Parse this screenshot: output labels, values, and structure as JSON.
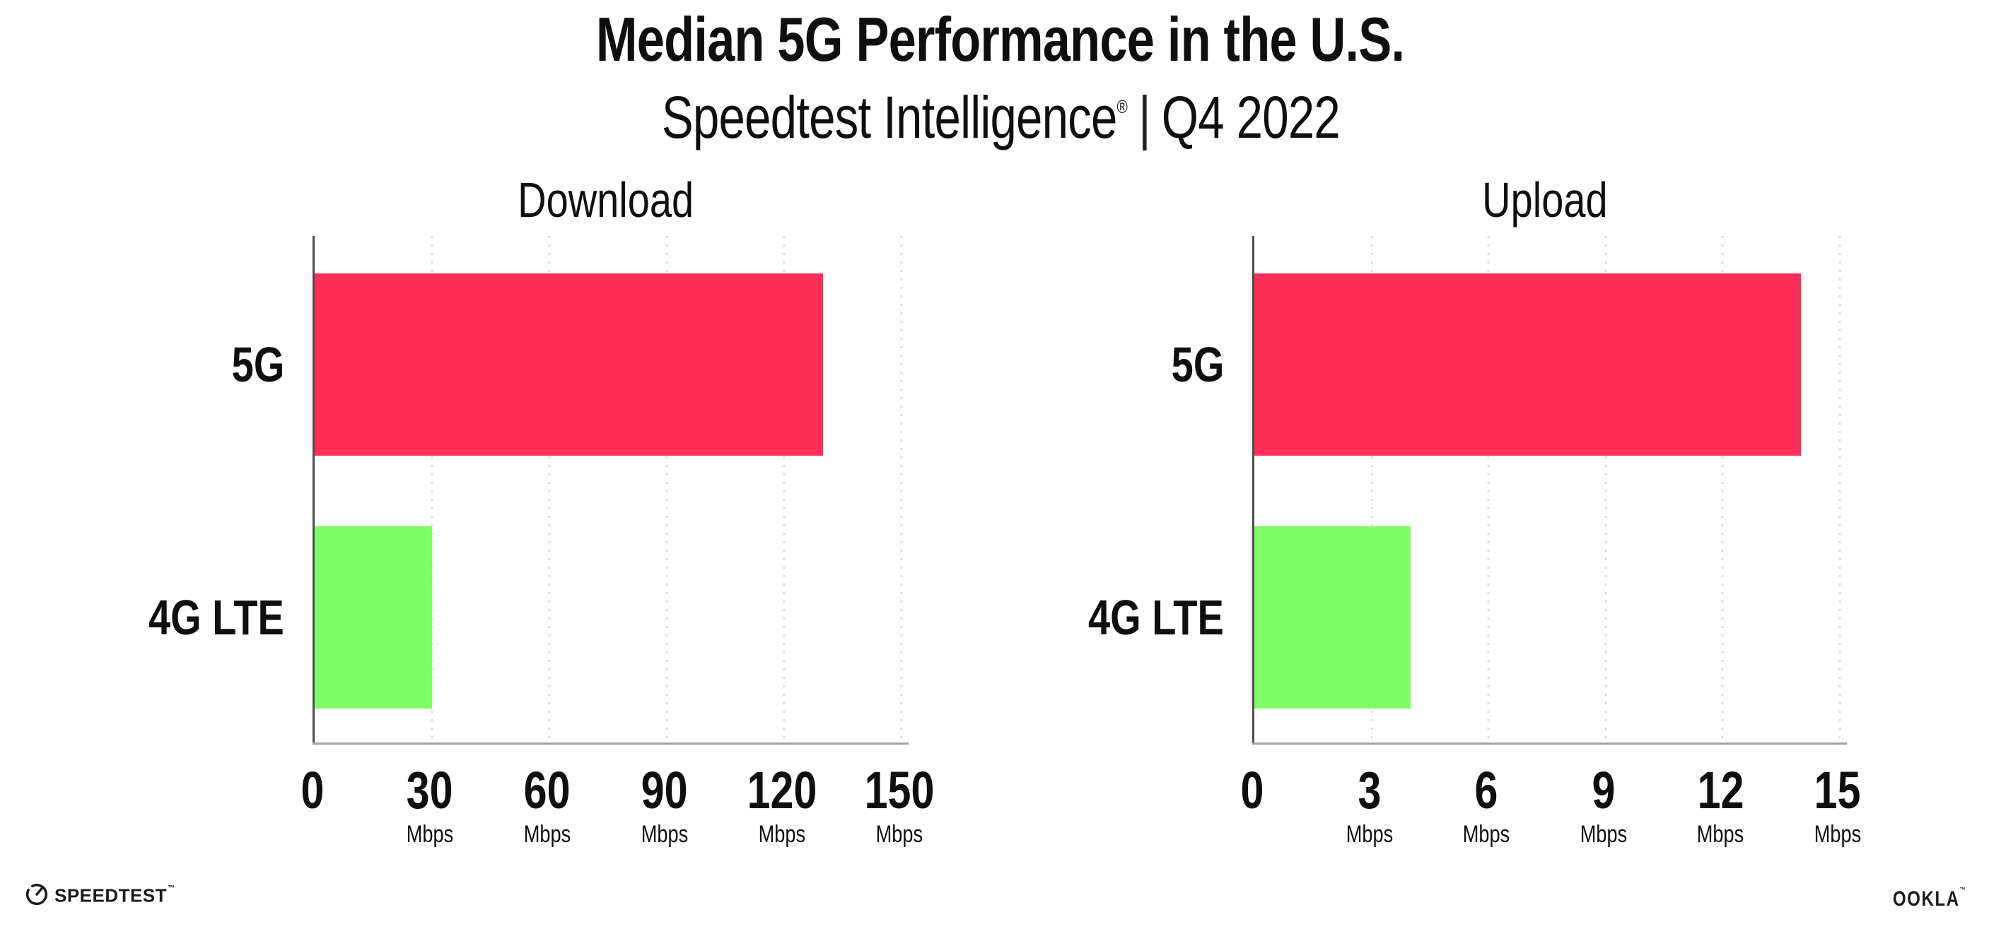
{
  "header": {
    "title": "Median 5G Performance in the U.S.",
    "subtitle_brand": "Speedtest Intelligence",
    "subtitle_reg": "®",
    "subtitle_sep": "|",
    "subtitle_period": "Q4 2022"
  },
  "colors": {
    "bar_5g": "#FF2E56",
    "bar_4g": "#80FC66",
    "axis_spine": "#4C4C54",
    "axis_line": "#A2A2AA",
    "gridline": "#DEDEE9",
    "text": "#0F0F0F"
  },
  "chart_data": [
    {
      "type": "bar",
      "orientation": "horizontal",
      "title": "Download",
      "categories": [
        "5G",
        "4G LTE"
      ],
      "values": [
        130,
        30
      ],
      "unit": "Mbps",
      "xlim": [
        0,
        150
      ],
      "grid": "dotted-vertical",
      "bar_colors": [
        "#FF2E56",
        "#80FC66"
      ],
      "ticks": [
        {
          "num": "0",
          "unit": ""
        },
        {
          "num": "30",
          "unit": "Mbps"
        },
        {
          "num": "60",
          "unit": "Mbps"
        },
        {
          "num": "90",
          "unit": "Mbps"
        },
        {
          "num": "120",
          "unit": "Mbps"
        },
        {
          "num": "150",
          "unit": "Mbps"
        }
      ]
    },
    {
      "type": "bar",
      "orientation": "horizontal",
      "title": "Upload",
      "categories": [
        "5G",
        "4G LTE"
      ],
      "values": [
        14,
        4
      ],
      "unit": "Mbps",
      "xlim": [
        0,
        15
      ],
      "grid": "dotted-vertical",
      "bar_colors": [
        "#FF2E56",
        "#80FC66"
      ],
      "ticks": [
        {
          "num": "0",
          "unit": ""
        },
        {
          "num": "3",
          "unit": "Mbps"
        },
        {
          "num": "6",
          "unit": "Mbps"
        },
        {
          "num": "9",
          "unit": "Mbps"
        },
        {
          "num": "12",
          "unit": "Mbps"
        },
        {
          "num": "15",
          "unit": "Mbps"
        }
      ]
    }
  ],
  "footer": {
    "speedtest_label": "SPEEDTEST",
    "speedtest_tm": "™",
    "ookla_label": "OOKLA",
    "ookla_tm": "™"
  }
}
